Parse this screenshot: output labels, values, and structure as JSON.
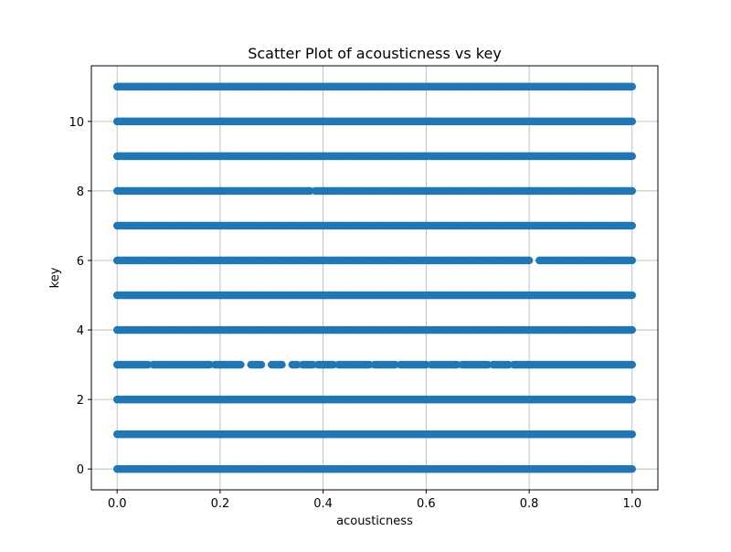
{
  "chart_data": {
    "type": "scatter",
    "title": "Scatter Plot of acousticness vs key",
    "xlabel": "acousticness",
    "ylabel": "key",
    "xlim": [
      -0.05,
      1.05
    ],
    "ylim": [
      -0.6,
      11.6
    ],
    "xticks": [
      0.0,
      0.2,
      0.4,
      0.6,
      0.8,
      1.0
    ],
    "xtick_labels": [
      "0.0",
      "0.2",
      "0.4",
      "0.6",
      "0.8",
      "1.0"
    ],
    "yticks": [
      0,
      2,
      4,
      6,
      8,
      10
    ],
    "ytick_labels": [
      "0",
      "2",
      "4",
      "6",
      "8",
      "10"
    ],
    "grid": true,
    "marker_color": "#1f77b4",
    "marker_alpha": 0.5,
    "series": [
      {
        "rows": [
          {
            "key": 0,
            "segments": [
              [
                0.0,
                1.0
              ]
            ]
          },
          {
            "key": 1,
            "segments": [
              [
                0.0,
                1.0
              ]
            ]
          },
          {
            "key": 2,
            "segments": [
              [
                0.0,
                1.0
              ]
            ]
          },
          {
            "key": 3,
            "segments": [
              [
                0.0,
                0.06
              ],
              [
                0.07,
                0.18
              ],
              [
                0.19,
                0.24
              ],
              [
                0.26,
                0.28
              ],
              [
                0.3,
                0.32
              ],
              [
                0.34,
                0.35
              ],
              [
                0.36,
                0.38
              ],
              [
                0.39,
                0.42
              ],
              [
                0.43,
                0.49
              ],
              [
                0.5,
                0.54
              ],
              [
                0.55,
                0.6
              ],
              [
                0.61,
                0.66
              ],
              [
                0.67,
                0.72
              ],
              [
                0.73,
                0.76
              ],
              [
                0.77,
                1.0
              ]
            ]
          },
          {
            "key": 4,
            "segments": [
              [
                0.0,
                1.0
              ]
            ]
          },
          {
            "key": 5,
            "segments": [
              [
                0.0,
                1.0
              ]
            ]
          },
          {
            "key": 6,
            "segments": [
              [
                0.0,
                0.8
              ],
              [
                0.82,
                1.0
              ]
            ]
          },
          {
            "key": 7,
            "segments": [
              [
                0.0,
                1.0
              ]
            ]
          },
          {
            "key": 8,
            "segments": [
              [
                0.0,
                0.375
              ],
              [
                0.385,
                1.0
              ]
            ]
          },
          {
            "key": 9,
            "segments": [
              [
                0.0,
                1.0
              ]
            ]
          },
          {
            "key": 10,
            "segments": [
              [
                0.0,
                1.0
              ]
            ]
          },
          {
            "key": 11,
            "segments": [
              [
                0.0,
                1.0
              ]
            ]
          }
        ]
      }
    ]
  }
}
